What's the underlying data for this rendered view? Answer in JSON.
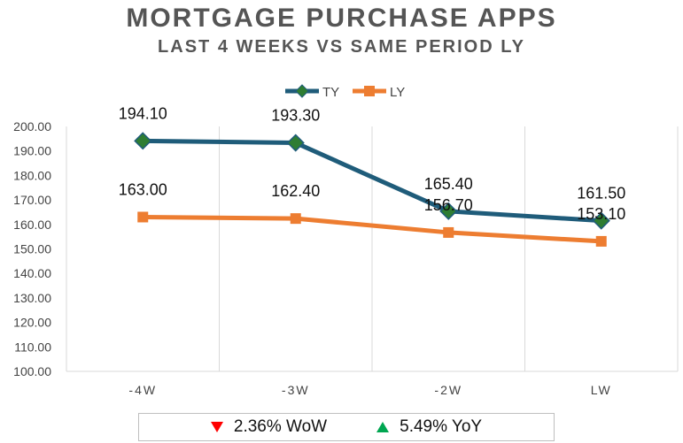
{
  "chart_data": {
    "type": "line",
    "title": "MORTGAGE PURCHASE APPS",
    "subtitle": "LAST 4 WEEKS VS SAME PERIOD LY",
    "categories": [
      "-4W",
      "-3W",
      "-2W",
      "LW"
    ],
    "series": [
      {
        "name": "TY",
        "values": [
          194.1,
          193.3,
          165.4,
          161.5
        ],
        "labels": [
          "194.10",
          "193.30",
          "165.40",
          "161.50"
        ],
        "color": "#1f5c7a",
        "marker_color": "#2e7d32"
      },
      {
        "name": "LY",
        "values": [
          163.0,
          162.4,
          156.7,
          153.1
        ],
        "labels": [
          "163.00",
          "162.40",
          "156.70",
          "153.10"
        ],
        "color": "#ed7d31",
        "marker_color": "#ed7d31"
      }
    ],
    "ylim": [
      100,
      200
    ],
    "yticks": [
      "100.00",
      "110.00",
      "120.00",
      "130.00",
      "140.00",
      "150.00",
      "160.00",
      "170.00",
      "180.00",
      "190.00",
      "200.00"
    ],
    "grid": "vertical",
    "legend": "top-center"
  },
  "footer": {
    "wow_text": "2.36% WoW",
    "yoy_text": "5.49% YoY",
    "wow_color": "#ff0000",
    "yoy_color": "#00a651"
  }
}
